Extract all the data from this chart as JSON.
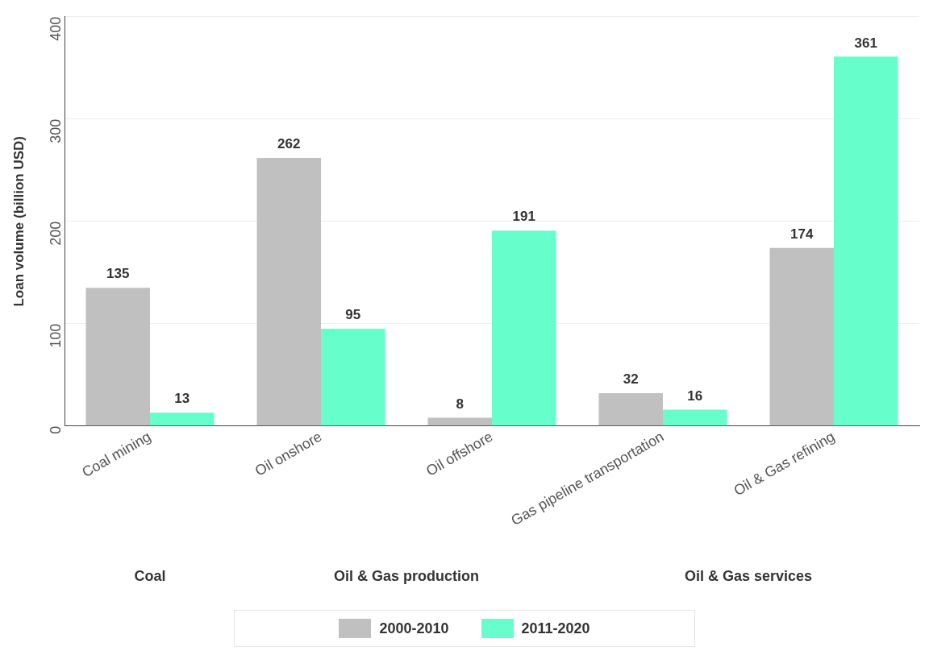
{
  "chart_data": {
    "type": "bar",
    "ylabel": "Loan volume (billion USD)",
    "categories": [
      "Coal mining",
      "Oil onshore",
      "Oil offshore",
      "Gas pipeline transportation",
      "Oil & Gas refining"
    ],
    "series": [
      {
        "name": "2000-2010",
        "color": "#c0c0c0",
        "values": [
          135,
          262,
          8,
          32,
          174
        ]
      },
      {
        "name": "2011-2020",
        "color": "#66ffcc",
        "values": [
          13,
          95,
          191,
          16,
          361
        ]
      }
    ],
    "ylim": [
      0,
      400
    ],
    "yticks": [
      0,
      100,
      200,
      300,
      400
    ],
    "grid": "y",
    "legend": "bottom",
    "data_labels": true,
    "annotations": [
      "Coal",
      "Oil & Gas production",
      "Oil & Gas services"
    ]
  }
}
